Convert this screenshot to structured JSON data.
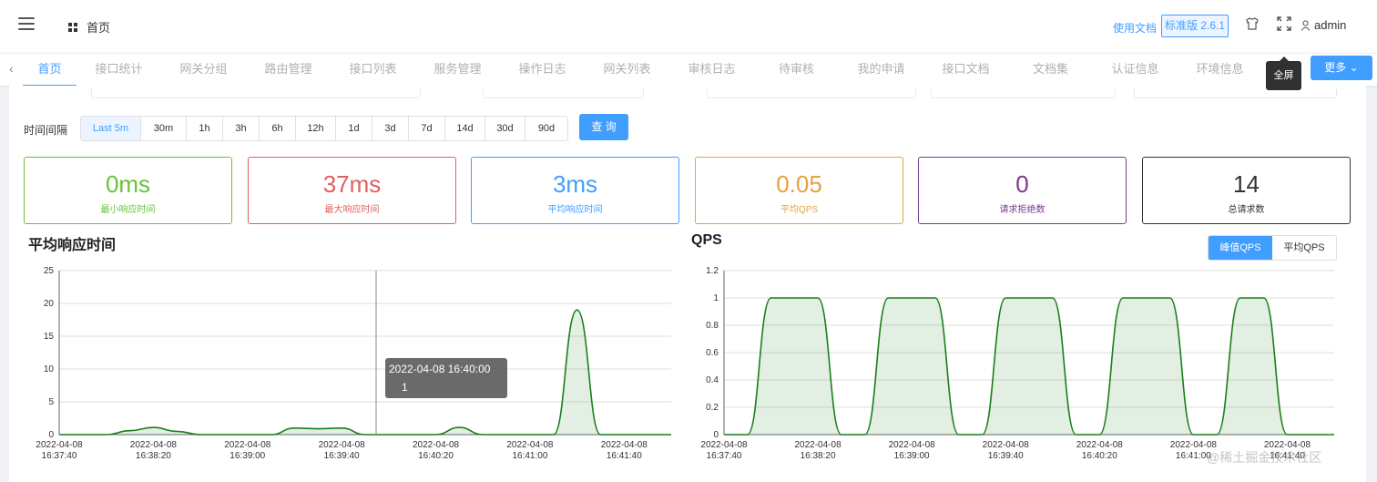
{
  "header": {
    "breadcrumb": "首页",
    "doc_link": "使用文档",
    "version": "标准版 2.6.1",
    "user": "admin"
  },
  "tabs": [
    "首页",
    "接口统计",
    "网关分组",
    "路由管理",
    "接口列表",
    "服务管理",
    "操作日志",
    "网关列表",
    "审核日志",
    "待审核",
    "我的申请",
    "接口文档",
    "文档集",
    "认证信息",
    "环境信息"
  ],
  "more_label": "更多",
  "fullscreen_tooltip": "全屏",
  "time_interval": {
    "label": "时间间隔",
    "options": [
      "Last 5m",
      "30m",
      "1h",
      "3h",
      "6h",
      "12h",
      "1d",
      "3d",
      "7d",
      "14d",
      "30d",
      "90d"
    ],
    "selected": "Last 5m",
    "query_label": "查 询"
  },
  "stats": [
    {
      "value": "0ms",
      "label": "最小响应时间",
      "color": "#67c23a"
    },
    {
      "value": "37ms",
      "label": "最大响应时间",
      "color": "#e06060"
    },
    {
      "value": "3ms",
      "label": "平均响应时间",
      "color": "#409eff"
    },
    {
      "value": "0.05",
      "label": "平均QPS",
      "color": "#e6a23c"
    },
    {
      "value": "0",
      "label": "请求拒绝数",
      "color": "#7a3a8c"
    },
    {
      "value": "14",
      "label": "总请求数",
      "color": "#333333"
    }
  ],
  "charts": {
    "avg_title": "平均响应时间",
    "qps_title": "QPS",
    "qps_toggle": [
      "峰值QPS",
      "平均QPS"
    ],
    "tooltip_time": "2022-04-08 16:40:00",
    "tooltip_value": "1"
  },
  "chart_data": [
    {
      "type": "area",
      "title": "平均响应时间",
      "ylim": [
        0,
        25
      ],
      "yticks": [
        0,
        5,
        10,
        15,
        20,
        25
      ],
      "xticks": [
        [
          "2022-04-08",
          "16:37:40"
        ],
        [
          "2022-04-08",
          "16:38:20"
        ],
        [
          "2022-04-08",
          "16:39:00"
        ],
        [
          "2022-04-08",
          "16:39:40"
        ],
        [
          "2022-04-08",
          "16:40:20"
        ],
        [
          "2022-04-08",
          "16:41:00"
        ],
        [
          "2022-04-08",
          "16:41:40"
        ]
      ],
      "color": "#1a7f1a",
      "x": [
        "16:37:40",
        "16:37:50",
        "16:38:00",
        "16:38:10",
        "16:38:20",
        "16:38:30",
        "16:38:40",
        "16:38:50",
        "16:39:00",
        "16:39:10",
        "16:39:20",
        "16:39:30",
        "16:39:40",
        "16:39:50",
        "16:40:00",
        "16:40:10",
        "16:40:20",
        "16:40:30",
        "16:40:40",
        "16:40:50",
        "16:41:00",
        "16:41:10",
        "16:41:20",
        "16:41:30",
        "16:41:40",
        "16:41:50",
        "16:42:00"
      ],
      "values": [
        0,
        0,
        0,
        0.6,
        1.1,
        0.5,
        0,
        0,
        0,
        0,
        1.0,
        0.9,
        1.0,
        0,
        0,
        0,
        0,
        1.1,
        0,
        0,
        0,
        0,
        19,
        0,
        0,
        0,
        0
      ]
    },
    {
      "type": "area",
      "title": "QPS",
      "ylim": [
        0,
        1.2
      ],
      "yticks": [
        0,
        0.2,
        0.4,
        0.6,
        0.8,
        1,
        1.2
      ],
      "xticks": [
        [
          "2022-04-08",
          "16:37:40"
        ],
        [
          "2022-04-08",
          "16:38:20"
        ],
        [
          "2022-04-08",
          "16:39:00"
        ],
        [
          "2022-04-08",
          "16:39:40"
        ],
        [
          "2022-04-08",
          "16:40:20"
        ],
        [
          "2022-04-08",
          "16:41:00"
        ],
        [
          "2022-04-08",
          "16:41:40"
        ]
      ],
      "color": "#1a7f1a",
      "x": [
        "16:37:40",
        "16:37:50",
        "16:38:00",
        "16:38:10",
        "16:38:20",
        "16:38:30",
        "16:38:40",
        "16:38:50",
        "16:39:00",
        "16:39:10",
        "16:39:20",
        "16:39:30",
        "16:39:40",
        "16:39:50",
        "16:40:00",
        "16:40:10",
        "16:40:20",
        "16:40:30",
        "16:40:40",
        "16:40:50",
        "16:41:00",
        "16:41:10",
        "16:41:20",
        "16:41:30",
        "16:41:40",
        "16:41:50",
        "16:42:00"
      ],
      "values": [
        0,
        0,
        1,
        1,
        1,
        0,
        0,
        1,
        1,
        1,
        0,
        0,
        1,
        1,
        1,
        0,
        0,
        1,
        1,
        1,
        0,
        0,
        1,
        1,
        0,
        0,
        0
      ]
    }
  ],
  "watermark": "@稀土掘金技术社区"
}
